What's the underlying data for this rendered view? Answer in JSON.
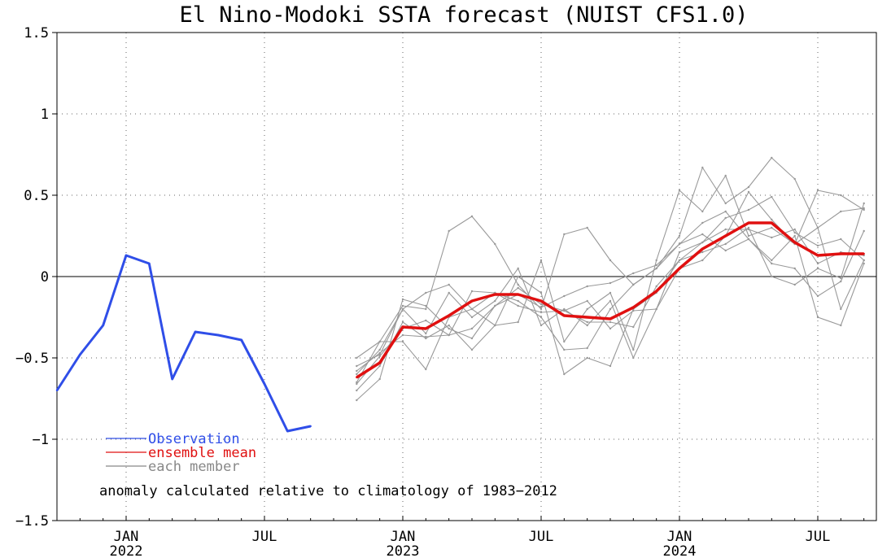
{
  "chart_data": {
    "type": "line",
    "title": "El Nino-Modoki SSTA forecast (NUIST CFS1.0)",
    "xlabel": "",
    "ylabel": "",
    "ylim": [
      -1.5,
      1.5
    ],
    "xlim": [
      "2021-10",
      "2024-09"
    ],
    "yticks": [
      {
        "value": 1.5,
        "label": "1.5"
      },
      {
        "value": 1,
        "label": "1"
      },
      {
        "value": 0.5,
        "label": "0.5"
      },
      {
        "value": 0,
        "label": "0"
      },
      {
        "value": -0.5,
        "label": "−0.5"
      },
      {
        "value": -1,
        "label": "−1"
      },
      {
        "value": -1.5,
        "label": "−1.5"
      }
    ],
    "xticks": [
      {
        "date": "2022-01",
        "month": "JAN",
        "year": "2022"
      },
      {
        "date": "2022-07",
        "month": "JUL",
        "year": ""
      },
      {
        "date": "2023-01",
        "month": "JAN",
        "year": "2023"
      },
      {
        "date": "2023-07",
        "month": "JUL",
        "year": ""
      },
      {
        "date": "2024-01",
        "month": "JAN",
        "year": "2024"
      },
      {
        "date": "2024-07",
        "month": "JUL",
        "year": ""
      }
    ],
    "grid": true,
    "zero_line": true,
    "legend": {
      "placement": "bottom-left",
      "entries": [
        {
          "label": "Observation",
          "color": "#2f4ee8"
        },
        {
          "label": "ensemble mean",
          "color": "#e01010"
        },
        {
          "label": "each member",
          "color": "#888888"
        }
      ]
    },
    "annotation": "anomaly calculated relative to climatology of 1983−2012",
    "observation": {
      "name": "Observation",
      "color": "#2f4ee8",
      "x": [
        "2021-10",
        "2021-11",
        "2021-12",
        "2022-01",
        "2022-02",
        "2022-03",
        "2022-04",
        "2022-05",
        "2022-06",
        "2022-07",
        "2022-08",
        "2022-09",
        "2022-10"
      ],
      "y": [
        -0.7,
        -0.48,
        -0.3,
        0.13,
        0.08,
        -0.63,
        -0.34,
        -0.36,
        -0.39,
        -0.66,
        -0.95,
        -0.92,
        null
      ]
    },
    "ensemble_mean": {
      "name": "ensemble mean",
      "color": "#e01010",
      "x": [
        "2022-11",
        "2022-12",
        "2023-01",
        "2023-02",
        "2023-03",
        "2023-04",
        "2023-05",
        "2023-06",
        "2023-07",
        "2023-08",
        "2023-09",
        "2023-10",
        "2023-11",
        "2023-12",
        "2024-01",
        "2024-02",
        "2024-03",
        "2024-04",
        "2024-05",
        "2024-06",
        "2024-07",
        "2024-08",
        "2024-09"
      ],
      "y": [
        -0.62,
        -0.53,
        -0.31,
        -0.32,
        -0.24,
        -0.15,
        -0.11,
        -0.11,
        -0.15,
        -0.24,
        -0.25,
        -0.26,
        -0.19,
        -0.09,
        0.05,
        0.17,
        0.25,
        0.33,
        0.33,
        0.21,
        0.13,
        0.14,
        0.14
      ]
    },
    "members": {
      "name": "each member",
      "color": "#999999",
      "x": [
        "2022-11",
        "2022-12",
        "2023-01",
        "2023-02",
        "2023-03",
        "2023-04",
        "2023-05",
        "2023-06",
        "2023-07",
        "2023-08",
        "2023-09",
        "2023-10",
        "2023-11",
        "2023-12",
        "2024-01",
        "2024-02",
        "2024-03",
        "2024-04",
        "2024-05",
        "2024-06",
        "2024-07",
        "2024-08",
        "2024-09"
      ],
      "series": [
        [
          -0.5,
          -0.4,
          -0.18,
          -0.2,
          0.28,
          0.37,
          0.2,
          -0.05,
          -0.2,
          0.26,
          0.3,
          0.1,
          -0.05,
          0.05,
          0.25,
          0.67,
          0.45,
          0.55,
          0.73,
          0.6,
          0.3,
          -0.2,
          0.1
        ],
        [
          -0.55,
          -0.48,
          -0.2,
          -0.1,
          -0.05,
          -0.2,
          -0.3,
          -0.28,
          0.1,
          -0.4,
          -0.2,
          -0.1,
          -0.45,
          0.1,
          0.53,
          0.4,
          0.62,
          0.25,
          0.3,
          0.2,
          0.53,
          0.5,
          0.41
        ],
        [
          -0.6,
          -0.45,
          -0.2,
          -0.35,
          -0.1,
          -0.25,
          -0.15,
          0.05,
          -0.3,
          -0.2,
          -0.3,
          -0.15,
          -0.5,
          -0.2,
          0.05,
          0.1,
          0.25,
          0.52,
          0.35,
          0.2,
          0.3,
          0.4,
          0.42
        ],
        [
          -0.65,
          -0.4,
          -0.4,
          -0.57,
          -0.25,
          -0.2,
          -0.1,
          -0.15,
          -0.25,
          -0.45,
          -0.44,
          -0.2,
          -0.05,
          0.05,
          0.2,
          0.33,
          0.4,
          0.23,
          0.1,
          0.25,
          -0.25,
          -0.3,
          0.08
        ],
        [
          -0.7,
          -0.55,
          -0.28,
          -0.38,
          -0.3,
          -0.45,
          -0.3,
          0.0,
          -0.1,
          -0.6,
          -0.5,
          -0.55,
          -0.2,
          -0.1,
          0.1,
          0.15,
          0.2,
          0.3,
          0.0,
          -0.05,
          0.05,
          -0.01,
          0.45
        ],
        [
          -0.76,
          -0.63,
          -0.14,
          -0.18,
          -0.32,
          -0.38,
          -0.18,
          -0.11,
          -0.19,
          -0.12,
          -0.06,
          -0.04,
          0.02,
          0.07,
          0.2,
          0.26,
          0.16,
          0.23,
          0.08,
          0.05,
          -0.12,
          -0.03,
          0.28
        ],
        [
          -0.58,
          -0.47,
          -0.36,
          -0.37,
          -0.36,
          -0.09,
          -0.1,
          -0.18,
          -0.22,
          -0.21,
          -0.28,
          -0.28,
          -0.31,
          -0.06,
          0.1,
          0.21,
          0.36,
          0.41,
          0.49,
          0.27,
          0.19,
          0.23,
          0.1
        ],
        [
          -0.66,
          -0.49,
          -0.32,
          -0.27,
          -0.36,
          -0.32,
          -0.18,
          -0.07,
          -0.17,
          -0.21,
          -0.15,
          -0.32,
          -0.21,
          -0.2,
          0.15,
          0.21,
          0.29,
          0.29,
          0.24,
          0.29,
          0.08,
          0.15,
          0.13
        ]
      ]
    }
  }
}
